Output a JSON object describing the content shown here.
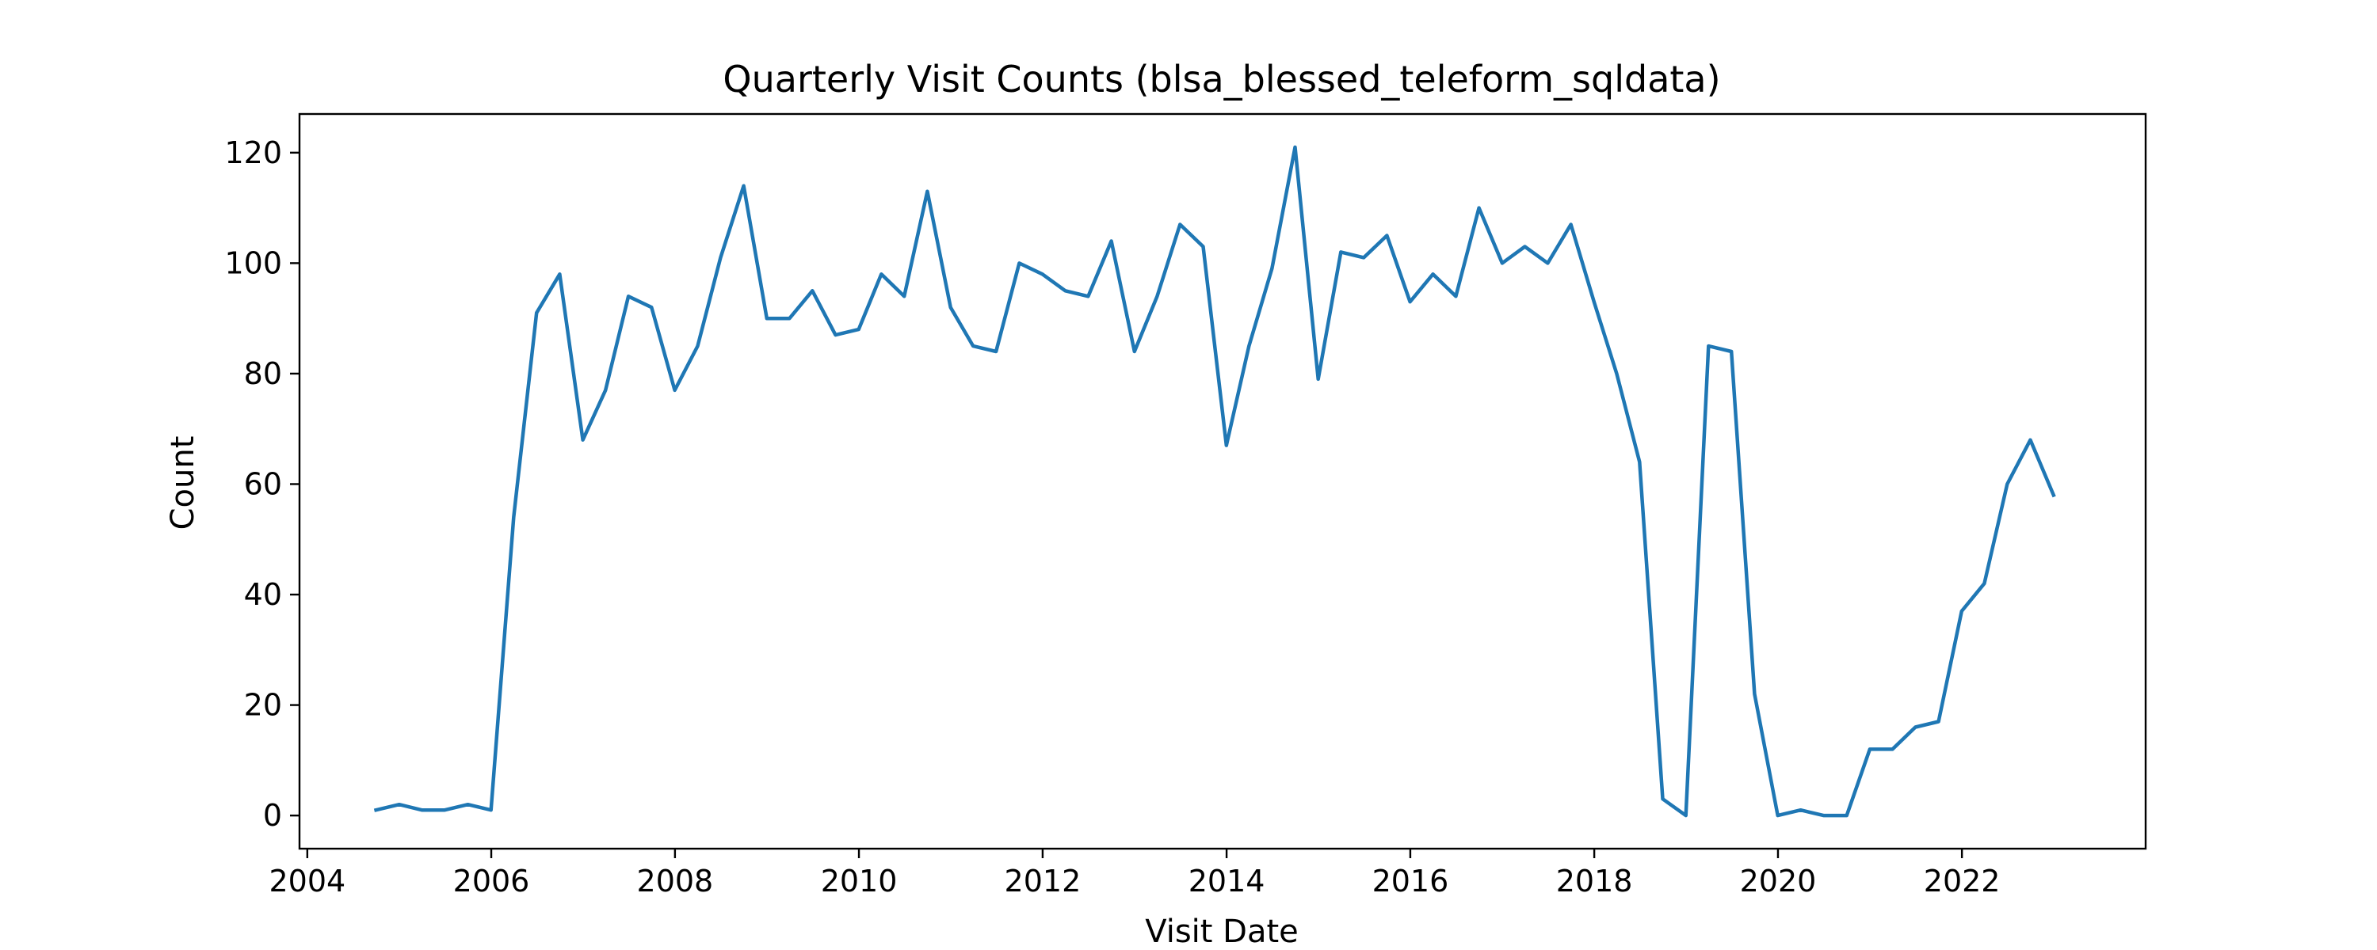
{
  "chart_data": {
    "type": "line",
    "title": "Quarterly Visit Counts (blsa_blessed_teleform_sqldata)",
    "xlabel": "Visit Date",
    "ylabel": "Count",
    "xlim": [
      "2003-12-01",
      "2024-01-01"
    ],
    "ylim": [
      -6,
      127
    ],
    "x_ticks": [
      "2004-01-01",
      "2006-01-01",
      "2008-01-01",
      "2010-01-01",
      "2012-01-01",
      "2014-01-01",
      "2016-01-01",
      "2018-01-01",
      "2020-01-01",
      "2022-01-01"
    ],
    "x_tick_labels": [
      "2004",
      "2006",
      "2008",
      "2010",
      "2012",
      "2014",
      "2016",
      "2018",
      "2020",
      "2022"
    ],
    "y_ticks": [
      0,
      20,
      40,
      60,
      80,
      100,
      120
    ],
    "y_tick_labels": [
      "0",
      "20",
      "40",
      "60",
      "80",
      "100",
      "120"
    ],
    "grid": false,
    "line_color": "#1f77b4",
    "series": [
      {
        "x": [
          "2004-09-30",
          "2004-12-31",
          "2005-03-31",
          "2005-06-30",
          "2005-09-30",
          "2005-12-31",
          "2006-03-31",
          "2006-06-30",
          "2006-09-30",
          "2006-12-31",
          "2007-03-31",
          "2007-06-30",
          "2007-09-30",
          "2007-12-31",
          "2008-03-31",
          "2008-06-30",
          "2008-09-30",
          "2008-12-31",
          "2009-03-31",
          "2009-06-30",
          "2009-09-30",
          "2009-12-31",
          "2010-03-31",
          "2010-06-30",
          "2010-09-30",
          "2010-12-31",
          "2011-03-31",
          "2011-06-30",
          "2011-09-30",
          "2011-12-31",
          "2012-03-31",
          "2012-06-30",
          "2012-09-30",
          "2012-12-31",
          "2013-03-31",
          "2013-06-30",
          "2013-09-30",
          "2013-12-31",
          "2014-03-31",
          "2014-06-30",
          "2014-09-30",
          "2014-12-31",
          "2015-03-31",
          "2015-06-30",
          "2015-09-30",
          "2015-12-31",
          "2016-03-31",
          "2016-06-30",
          "2016-09-30",
          "2016-12-31",
          "2017-03-31",
          "2017-06-30",
          "2017-09-30",
          "2017-12-31",
          "2018-03-31",
          "2018-06-30",
          "2018-09-30",
          "2018-12-31",
          "2019-03-31",
          "2019-06-30",
          "2019-09-30",
          "2019-12-31",
          "2020-03-31",
          "2020-06-30",
          "2020-09-30",
          "2020-12-31",
          "2021-03-31",
          "2021-06-30",
          "2021-09-30",
          "2021-12-31",
          "2022-03-31",
          "2022-06-30",
          "2022-09-30",
          "2022-12-31"
        ],
        "y": [
          1,
          2,
          1,
          1,
          2,
          1,
          54,
          91,
          98,
          68,
          77,
          94,
          92,
          77,
          85,
          101,
          114,
          90,
          90,
          95,
          87,
          88,
          98,
          94,
          113,
          92,
          85,
          84,
          100,
          98,
          95,
          94,
          104,
          84,
          94,
          107,
          103,
          67,
          85,
          99,
          121,
          79,
          102,
          101,
          105,
          93,
          98,
          94,
          110,
          100,
          103,
          100,
          107,
          93,
          80,
          64,
          3,
          0,
          85,
          84,
          22,
          0,
          1,
          0,
          0,
          12,
          12,
          16,
          17,
          37,
          42,
          60,
          68,
          58
        ]
      }
    ]
  }
}
